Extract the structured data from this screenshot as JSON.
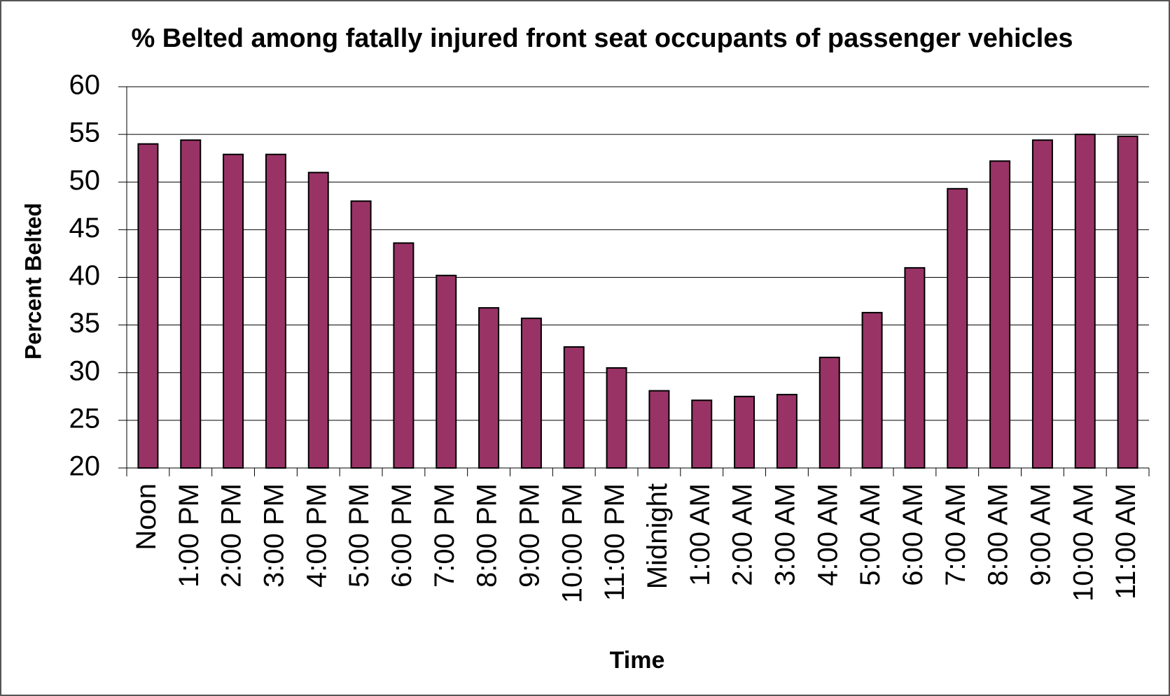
{
  "chart_data": {
    "type": "bar",
    "title": "% Belted among fatally injured front seat occupants of passenger vehicles",
    "x_label": "Time",
    "y_label": "Percent Belted",
    "categories": [
      "Noon",
      "1:00 PM",
      "2:00 PM",
      "3:00 PM",
      "4:00 PM",
      "5:00 PM",
      "6:00 PM",
      "7:00 PM",
      "8:00 PM",
      "9:00 PM",
      "10:00 PM",
      "11:00 PM",
      "Midnight",
      "1:00 AM",
      "2:00 AM",
      "3:00 AM",
      "4:00 AM",
      "5:00 AM",
      "6:00 AM",
      "7:00 AM",
      "8:00 AM",
      "9:00 AM",
      "10:00 AM",
      "11:00 AM"
    ],
    "values": [
      54,
      54.4,
      52.9,
      52.9,
      51,
      48,
      43.6,
      40.2,
      36.8,
      35.7,
      32.7,
      30.5,
      28.1,
      27.1,
      27.5,
      27.7,
      31.6,
      36.3,
      41,
      49.3,
      52.2,
      54.4,
      55,
      54.8
    ],
    "color": "#993366",
    "ylim": [
      20,
      60
    ],
    "yticks": [
      20,
      25,
      30,
      35,
      40,
      45,
      50,
      55,
      60
    ],
    "grid": true
  }
}
